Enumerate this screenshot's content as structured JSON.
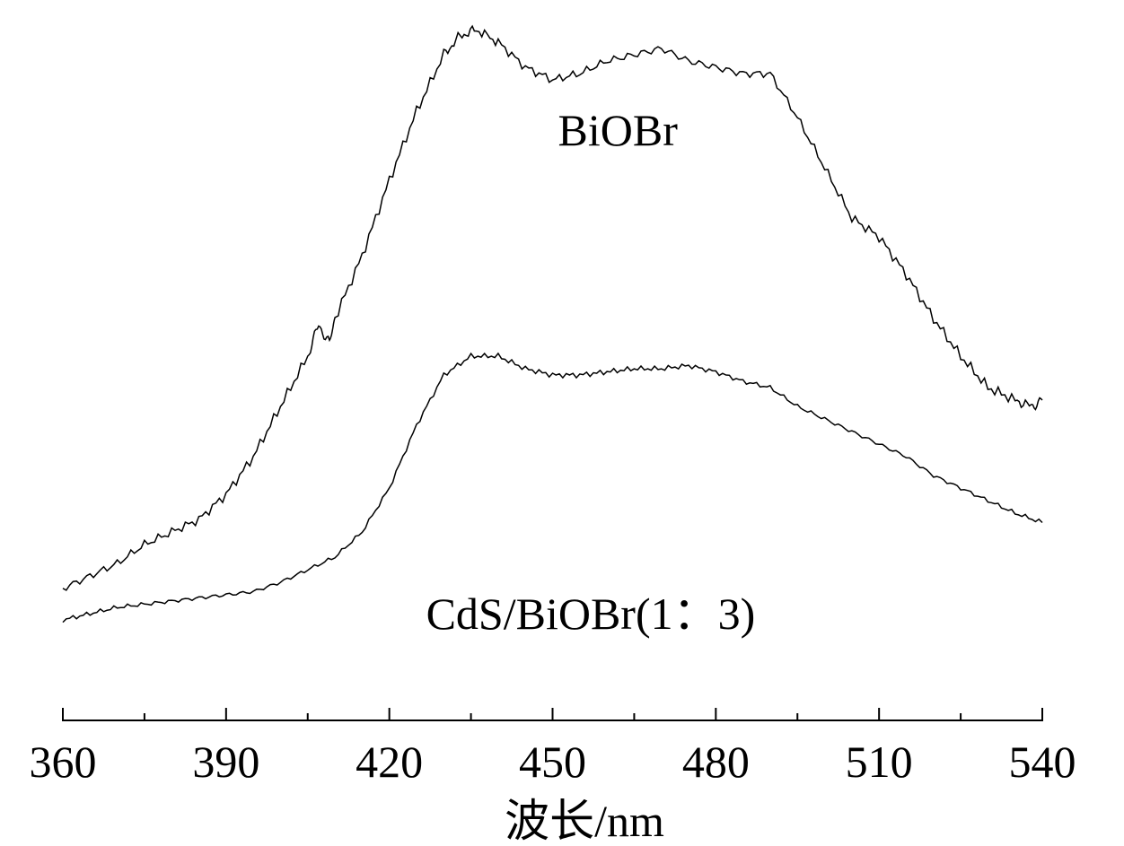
{
  "chart_data": {
    "type": "line",
    "title": "",
    "xlabel": "波长/nm",
    "ylabel": "",
    "xlim": [
      360,
      540
    ],
    "ylim": [
      0,
      100
    ],
    "x_ticks": [
      "360",
      "390",
      "420",
      "450",
      "480",
      "510",
      "540"
    ],
    "x_minor_step": 15,
    "grid": false,
    "legend": "none",
    "annotations": [
      {
        "text": "BiOBr",
        "x": 462,
        "y": 85
      },
      {
        "text": "CdS/BiOBr(1：3)",
        "x": 457,
        "y": 8
      }
    ],
    "series": [
      {
        "name": "BiOBr",
        "x": [
          360,
          365,
          370,
          375,
          380,
          385,
          390,
          395,
          400,
          405,
          407,
          409,
          410,
          415,
          420,
          425,
          430,
          433,
          436,
          440,
          445,
          450,
          455,
          460,
          465,
          470,
          475,
          480,
          485,
          490,
          495,
          500,
          505,
          510,
          515,
          520,
          525,
          530,
          535,
          538,
          540
        ],
        "y": [
          12,
          14,
          16,
          19,
          21,
          23,
          27,
          33,
          41,
          49,
          54,
          51,
          55,
          65,
          77,
          88,
          97,
          100,
          101,
          99,
          95,
          93,
          94,
          96,
          97,
          98,
          96,
          95,
          94,
          94,
          87,
          79,
          71,
          68,
          62,
          55,
          49,
          44,
          42,
          41,
          42
        ]
      },
      {
        "name": "CdS/BiOBr(1：3)",
        "x": [
          360,
          365,
          370,
          375,
          380,
          385,
          390,
          395,
          400,
          405,
          410,
          415,
          420,
          425,
          430,
          435,
          440,
          445,
          450,
          455,
          460,
          465,
          470,
          475,
          480,
          485,
          490,
          495,
          500,
          505,
          510,
          515,
          520,
          525,
          530,
          535,
          540
        ],
        "y": [
          7,
          8,
          9,
          9.5,
          10,
          10.5,
          11,
          11.5,
          13,
          15,
          17,
          21,
          28,
          38,
          46,
          49,
          49,
          47,
          46,
          46,
          46.5,
          47,
          47,
          47.5,
          46.5,
          45,
          44,
          41,
          39,
          37,
          35,
          33,
          30,
          28,
          26,
          24,
          22.5
        ]
      }
    ]
  }
}
